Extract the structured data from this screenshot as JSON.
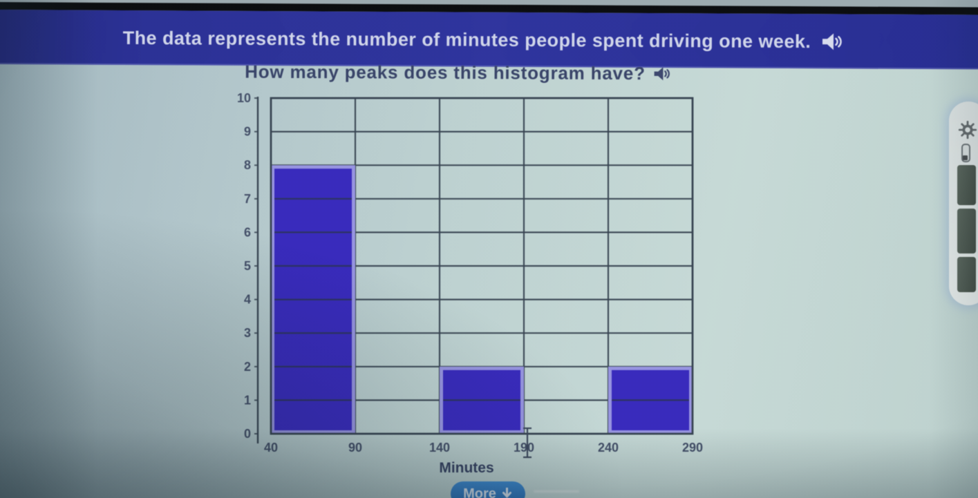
{
  "prompt": {
    "context_text": "The data represents the number of minutes people spent driving one week.",
    "question_text": "How many peaks does this histogram have?"
  },
  "chart_data": {
    "type": "bar",
    "variant": "histogram",
    "title": "",
    "xlabel": "Minutes",
    "ylabel": "",
    "ylim": [
      0,
      10
    ],
    "y_ticks": [
      0,
      1,
      2,
      3,
      4,
      5,
      6,
      7,
      8,
      9,
      10
    ],
    "bin_edges": [
      40,
      90,
      140,
      190,
      240,
      290
    ],
    "x_tick_labels": [
      "40",
      "90",
      "140",
      "190",
      "240",
      "290"
    ],
    "counts": [
      8,
      0,
      2,
      0,
      2
    ],
    "grid": true,
    "bar_fill": "#3b2ad0",
    "bar_border": "#9e99f0",
    "grid_color": "#394655",
    "bar_gridline_color": "#2d3170",
    "text_color": "#46526e"
  },
  "controls": {
    "more_label": "More"
  },
  "side_toolbar": {
    "icons": [
      "gear-icon",
      "marker-icon"
    ],
    "swatch_count": 3
  },
  "cursor": {
    "kind": "text-ibeam"
  }
}
